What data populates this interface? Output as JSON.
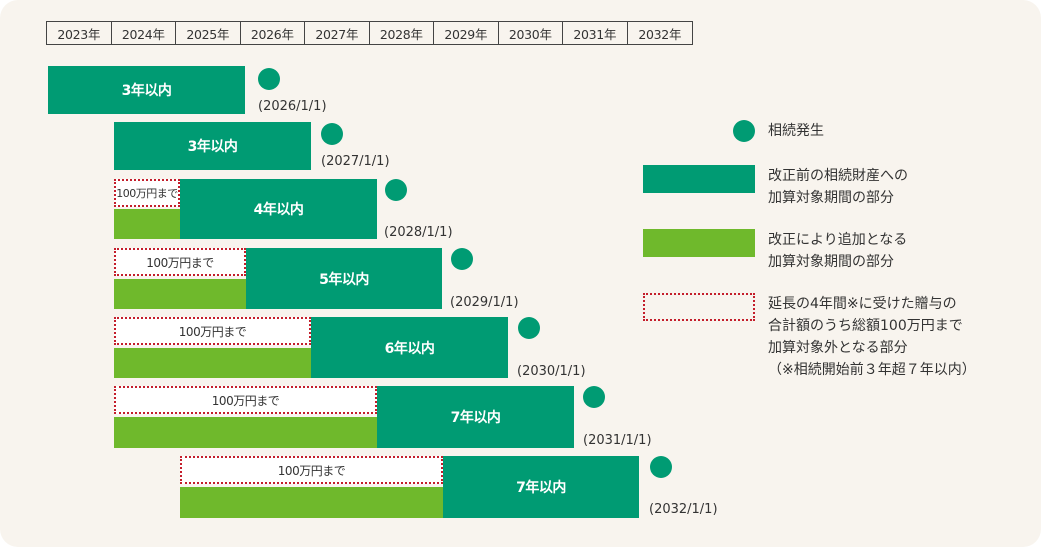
{
  "years": [
    "2023年",
    "2024年",
    "2025年",
    "2026年",
    "2027年",
    "2028年",
    "2029年",
    "2030年",
    "2031年",
    "2032年"
  ],
  "rows": [
    {
      "period_label": "3年以内",
      "limit_label": "",
      "date": "(2026/1/1)"
    },
    {
      "period_label": "3年以内",
      "limit_label": "",
      "date": "(2027/1/1)"
    },
    {
      "period_label": "4年以内",
      "limit_label": "100万円まで",
      "date": "(2028/1/1)"
    },
    {
      "period_label": "5年以内",
      "limit_label": "100万円まで",
      "date": "(2029/1/1)"
    },
    {
      "period_label": "6年以内",
      "limit_label": "100万円まで",
      "date": "(2030/1/1)"
    },
    {
      "period_label": "7年以内",
      "limit_label": "100万円まで",
      "date": "(2031/1/1)"
    },
    {
      "period_label": "7年以内",
      "limit_label": "100万円まで",
      "date": "(2032/1/1)"
    }
  ],
  "legend": {
    "inheritance": "相続発生",
    "pre_reform_line1": "改正前の相続財産への",
    "pre_reform_line2": "加算対象期間の部分",
    "added_line1": "改正により追加となる",
    "added_line2": "加算対象期間の部分",
    "excluded_line1": "延長の4年間※に受けた贈与の",
    "excluded_line2": "合計額のうち総額100万円まで",
    "excluded_line3": "加算対象外となる部分",
    "excluded_line4": "（※相続開始前３年超７年以内）"
  },
  "colors": {
    "pre_reform_green": "#009b73",
    "added_light_green": "#6fb92c",
    "dotted_red": "#c41e2b",
    "panel_bg": "#f8f4ee"
  }
}
